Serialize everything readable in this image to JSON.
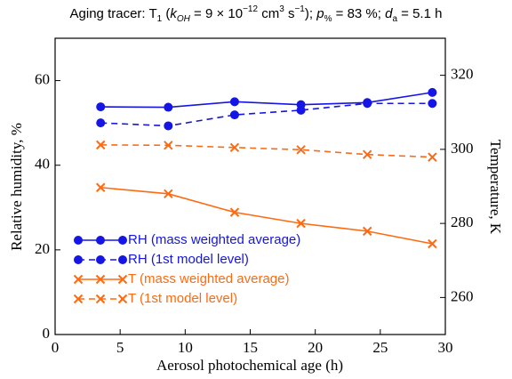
{
  "chart_data": {
    "type": "line",
    "title_parts": [
      {
        "text": "Aging tracer: T"
      },
      {
        "text": "1",
        "style": "sub"
      },
      {
        "text": " ("
      },
      {
        "text": "k",
        "style": "italic"
      },
      {
        "text": "OH",
        "style": "sub-italic"
      },
      {
        "text": " = 9 × 10"
      },
      {
        "text": "−12",
        "style": "sup"
      },
      {
        "text": " cm"
      },
      {
        "text": "3",
        "style": "sup"
      },
      {
        "text": " s"
      },
      {
        "text": "−1",
        "style": "sup"
      },
      {
        "text": "); "
      },
      {
        "text": "p",
        "style": "italic"
      },
      {
        "text": "%",
        "style": "sub"
      },
      {
        "text": " = 83 %; "
      },
      {
        "text": "d",
        "style": "italic"
      },
      {
        "text": "a",
        "style": "sub"
      },
      {
        "text": " = 5.1 h"
      }
    ],
    "xlabel": "Aerosol photochemical age (h)",
    "ylabel": "Relative humidity, %",
    "y2label": "Temperature, K",
    "x": [
      3.5,
      8.7,
      13.8,
      18.9,
      24,
      29
    ],
    "xlim": [
      0,
      30
    ],
    "xticks": [
      0,
      5,
      10,
      15,
      20,
      25,
      30
    ],
    "ylim": [
      0,
      70
    ],
    "yticks": [
      0,
      20,
      40,
      60
    ],
    "y2lim": [
      250,
      330
    ],
    "y2ticks": [
      260,
      280,
      300,
      320
    ],
    "legend": "lower left",
    "series": [
      {
        "name": "RH (mass weighted average)",
        "color": "#1515e6",
        "marker": "circle",
        "dash": false,
        "values": [
          53.8,
          53.7,
          55,
          54.3,
          54.8,
          57.2
        ]
      },
      {
        "name": "RH (1st model level)",
        "color": "#1515e6",
        "marker": "circle",
        "dash": true,
        "values": [
          50,
          49.3,
          51.9,
          53,
          54.6,
          54.6
        ]
      },
      {
        "name": "T (mass weighted average)",
        "color": "#ff6a10",
        "marker": "x",
        "dash": false,
        "axis": "y2",
        "values": [
          289.7,
          288,
          283,
          280,
          277.9,
          274.5
        ]
      },
      {
        "name": "T (1st model level)",
        "color": "#ff6a10",
        "marker": "x",
        "dash": true,
        "axis": "y2",
        "values": [
          301.2,
          301.1,
          300.5,
          299.9,
          298.6,
          297.9
        ]
      }
    ]
  }
}
